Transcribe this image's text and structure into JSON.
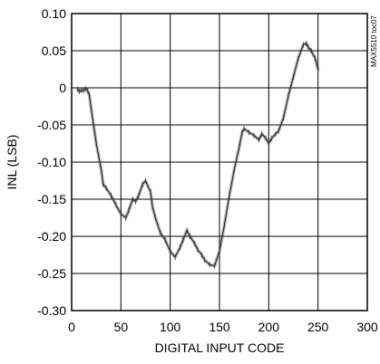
{
  "chart_data": {
    "type": "line",
    "title": "",
    "xlabel": "DIGITAL INPUT CODE",
    "ylabel": "INL (LSB)",
    "xlim": [
      0,
      300
    ],
    "ylim": [
      -0.3,
      0.1
    ],
    "xticks": [
      0,
      50,
      100,
      150,
      200,
      250,
      300
    ],
    "xtick_labels": [
      "0",
      "50",
      "100",
      "150",
      "200",
      "250",
      "300"
    ],
    "yticks": [
      0.1,
      0.05,
      0,
      -0.05,
      -0.1,
      -0.15,
      -0.2,
      -0.25,
      -0.3
    ],
    "ytick_labels": [
      "0.10",
      "0.05",
      "0",
      "-0.05",
      "-0.10",
      "-0.15",
      "-0.20",
      "-0.25",
      "-0.30"
    ],
    "grid": true,
    "legend": "none",
    "watermark": "MAX5510 toc07",
    "line_color": "#555555",
    "series": [
      {
        "x": [
          6,
          8,
          10,
          12,
          14,
          16,
          18,
          20,
          25,
          30,
          32,
          35,
          40,
          45,
          50,
          55,
          58,
          62,
          65,
          68,
          72,
          75,
          80,
          82,
          85,
          90,
          95,
          100,
          105,
          110,
          113,
          117,
          120,
          125,
          128,
          132,
          135,
          140,
          145,
          150,
          155,
          160,
          165,
          170,
          173,
          175,
          180,
          185,
          190,
          193,
          197,
          200,
          203,
          207,
          210,
          215,
          220,
          225,
          230,
          235,
          238,
          240,
          243,
          247,
          250
        ],
        "y": [
          -0.002,
          -0.005,
          -0.003,
          -0.004,
          -0.001,
          -0.003,
          -0.01,
          -0.03,
          -0.075,
          -0.11,
          -0.13,
          -0.135,
          -0.145,
          -0.158,
          -0.17,
          -0.175,
          -0.165,
          -0.15,
          -0.153,
          -0.145,
          -0.13,
          -0.125,
          -0.14,
          -0.16,
          -0.175,
          -0.195,
          -0.205,
          -0.22,
          -0.228,
          -0.215,
          -0.205,
          -0.192,
          -0.2,
          -0.21,
          -0.218,
          -0.225,
          -0.232,
          -0.238,
          -0.24,
          -0.22,
          -0.185,
          -0.145,
          -0.11,
          -0.08,
          -0.06,
          -0.055,
          -0.06,
          -0.064,
          -0.07,
          -0.062,
          -0.068,
          -0.075,
          -0.068,
          -0.062,
          -0.058,
          -0.04,
          -0.01,
          0.015,
          0.04,
          0.058,
          0.06,
          0.055,
          0.05,
          0.04,
          0.025
        ]
      }
    ]
  }
}
